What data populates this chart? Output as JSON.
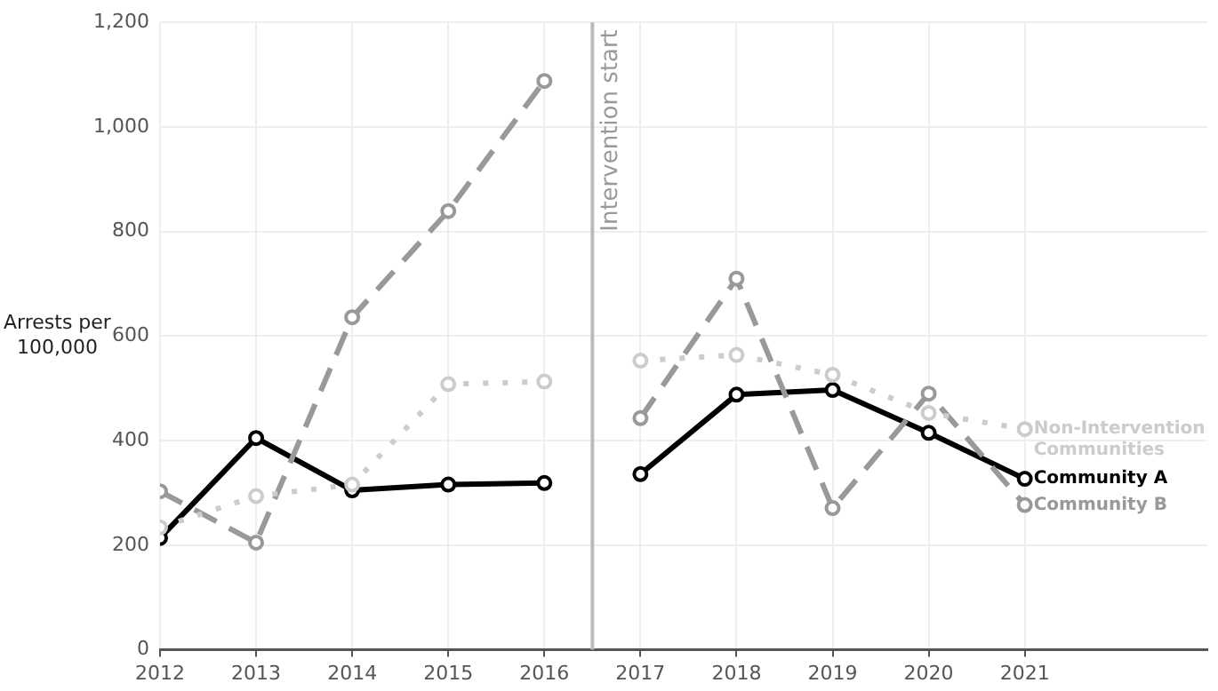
{
  "chart_data": {
    "type": "line",
    "ylabel": "Arrests per 100,000",
    "x": [
      2012,
      2013,
      2014,
      2015,
      2016,
      2016.5,
      2017,
      2018,
      2019,
      2020,
      2021
    ],
    "xlim": [
      2012,
      2022.9
    ],
    "xticks": [
      2012,
      2013,
      2014,
      2015,
      2016,
      2017,
      2018,
      2019,
      2020,
      2021
    ],
    "ylim": [
      0,
      1200
    ],
    "yticks": [
      0,
      200,
      400,
      600,
      800,
      {
        "value": 1000,
        "label": "1,000"
      },
      {
        "value": 1200,
        "label": "1,200"
      }
    ],
    "grid": true,
    "legend": false,
    "marker": "circle",
    "ref_lines": [
      {
        "axis": "x",
        "value": 2016.5,
        "label": "Intervention start",
        "color": "#bbbbbb"
      }
    ],
    "series": [
      {
        "name": "Non-Intervention Communities",
        "color": "#cccccc",
        "line_style": "dotted",
        "values": [
          234,
          294,
          316,
          508,
          513,
          null,
          553,
          564,
          526,
          453,
          422
        ]
      },
      {
        "name": "Community B",
        "color": "#999999",
        "line_style": "dashed",
        "values": [
          303,
          205,
          636,
          839,
          1088,
          null,
          443,
          710,
          271,
          490,
          277
        ]
      },
      {
        "name": "Community A",
        "color": "#000000",
        "line_style": "solid",
        "values": [
          214,
          405,
          305,
          316,
          319,
          null,
          336,
          488,
          497,
          415,
          327
        ]
      }
    ]
  }
}
